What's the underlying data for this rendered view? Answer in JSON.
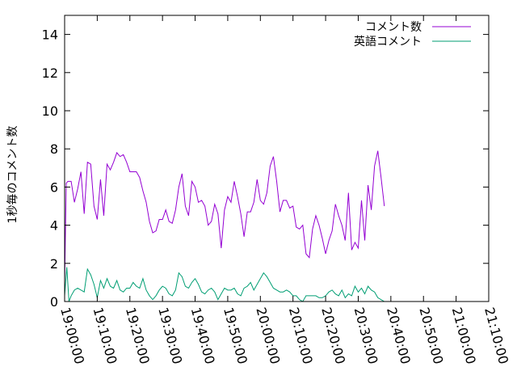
{
  "chart_data": {
    "type": "line",
    "title": "",
    "xlabel": "",
    "ylabel": "1秒毎のコメント数",
    "x_range": [
      "19:00:00",
      "21:10:00"
    ],
    "x_ticks": [
      "19:00:00",
      "19:10:00",
      "19:20:00",
      "19:30:00",
      "19:40:00",
      "19:50:00",
      "20:00:00",
      "20:10:00",
      "20:20:00",
      "20:30:00",
      "20:40:00",
      "20:50:00",
      "21:00:00",
      "21:10:00"
    ],
    "ylim": [
      0,
      15
    ],
    "y_ticks": [
      "0",
      "2",
      "4",
      "6",
      "8",
      "10",
      "12",
      "14"
    ],
    "grid": false,
    "legend_position": "top-right",
    "series": [
      {
        "name": "コメント数",
        "color": "#9400d3",
        "points": [
          [
            "19:00:00",
            1.0
          ],
          [
            "19:00:30",
            6.2
          ],
          [
            "19:01:00",
            6.3
          ],
          [
            "19:02:00",
            6.3
          ],
          [
            "19:03:00",
            5.2
          ],
          [
            "19:04:00",
            5.9
          ],
          [
            "19:05:00",
            6.8
          ],
          [
            "19:06:00",
            4.6
          ],
          [
            "19:07:00",
            7.3
          ],
          [
            "19:08:00",
            7.2
          ],
          [
            "19:09:00",
            5.0
          ],
          [
            "19:10:00",
            4.3
          ],
          [
            "19:11:00",
            6.4
          ],
          [
            "19:12:00",
            4.5
          ],
          [
            "19:13:00",
            7.2
          ],
          [
            "19:14:00",
            6.9
          ],
          [
            "19:15:00",
            7.3
          ],
          [
            "19:16:00",
            7.8
          ],
          [
            "19:17:00",
            7.6
          ],
          [
            "19:18:00",
            7.7
          ],
          [
            "19:19:00",
            7.3
          ],
          [
            "19:20:00",
            6.8
          ],
          [
            "19:21:00",
            6.8
          ],
          [
            "19:22:00",
            6.8
          ],
          [
            "19:23:00",
            6.5
          ],
          [
            "19:24:00",
            5.8
          ],
          [
            "19:25:00",
            5.2
          ],
          [
            "19:26:00",
            4.2
          ],
          [
            "19:27:00",
            3.6
          ],
          [
            "19:28:00",
            3.7
          ],
          [
            "19:29:00",
            4.3
          ],
          [
            "19:30:00",
            4.3
          ],
          [
            "19:31:00",
            4.8
          ],
          [
            "19:32:00",
            4.2
          ],
          [
            "19:33:00",
            4.1
          ],
          [
            "19:34:00",
            4.8
          ],
          [
            "19:35:00",
            6.0
          ],
          [
            "19:36:00",
            6.7
          ],
          [
            "19:37:00",
            5.0
          ],
          [
            "19:38:00",
            4.5
          ],
          [
            "19:39:00",
            6.3
          ],
          [
            "19:40:00",
            6.0
          ],
          [
            "19:41:00",
            5.2
          ],
          [
            "19:42:00",
            5.3
          ],
          [
            "19:43:00",
            5.0
          ],
          [
            "19:44:00",
            4.0
          ],
          [
            "19:45:00",
            4.2
          ],
          [
            "19:46:00",
            5.1
          ],
          [
            "19:47:00",
            4.6
          ],
          [
            "19:48:00",
            2.8
          ],
          [
            "19:49:00",
            4.8
          ],
          [
            "19:50:00",
            5.5
          ],
          [
            "19:51:00",
            5.2
          ],
          [
            "19:52:00",
            6.3
          ],
          [
            "19:53:00",
            5.5
          ],
          [
            "19:54:00",
            4.6
          ],
          [
            "19:55:00",
            3.4
          ],
          [
            "19:56:00",
            4.7
          ],
          [
            "19:57:00",
            4.7
          ],
          [
            "19:58:00",
            5.2
          ],
          [
            "19:59:00",
            6.4
          ],
          [
            "20:00:00",
            5.3
          ],
          [
            "20:01:00",
            5.1
          ],
          [
            "20:02:00",
            5.7
          ],
          [
            "20:03:00",
            7.1
          ],
          [
            "20:04:00",
            7.6
          ],
          [
            "20:05:00",
            6.3
          ],
          [
            "20:06:00",
            4.7
          ],
          [
            "20:07:00",
            5.3
          ],
          [
            "20:08:00",
            5.3
          ],
          [
            "20:09:00",
            4.9
          ],
          [
            "20:10:00",
            5.0
          ],
          [
            "20:11:00",
            3.9
          ],
          [
            "20:12:00",
            3.8
          ],
          [
            "20:13:00",
            4.0
          ],
          [
            "20:14:00",
            2.5
          ],
          [
            "20:15:00",
            2.3
          ],
          [
            "20:16:00",
            3.8
          ],
          [
            "20:17:00",
            4.5
          ],
          [
            "20:18:00",
            4.0
          ],
          [
            "20:19:00",
            3.3
          ],
          [
            "20:20:00",
            2.5
          ],
          [
            "20:21:00",
            3.2
          ],
          [
            "20:22:00",
            3.7
          ],
          [
            "20:23:00",
            5.1
          ],
          [
            "20:24:00",
            4.5
          ],
          [
            "20:25:00",
            4.0
          ],
          [
            "20:26:00",
            3.2
          ],
          [
            "20:27:00",
            5.7
          ],
          [
            "20:28:00",
            2.7
          ],
          [
            "20:29:00",
            3.1
          ],
          [
            "20:30:00",
            2.8
          ],
          [
            "20:31:00",
            5.3
          ],
          [
            "20:32:00",
            3.2
          ],
          [
            "20:33:00",
            6.1
          ],
          [
            "20:34:00",
            4.8
          ],
          [
            "20:35:00",
            7.1
          ],
          [
            "20:36:00",
            7.9
          ],
          [
            "20:37:00",
            6.5
          ],
          [
            "20:38:00",
            5.0
          ]
        ]
      },
      {
        "name": "英語コメント",
        "color": "#009e73",
        "points": [
          [
            "19:00:00",
            0.3
          ],
          [
            "19:00:40",
            1.8
          ],
          [
            "19:01:20",
            0.0
          ],
          [
            "19:02:00",
            0.3
          ],
          [
            "19:03:00",
            0.6
          ],
          [
            "19:04:00",
            0.7
          ],
          [
            "19:05:00",
            0.6
          ],
          [
            "19:06:00",
            0.5
          ],
          [
            "19:07:00",
            1.7
          ],
          [
            "19:08:00",
            1.4
          ],
          [
            "19:09:00",
            0.9
          ],
          [
            "19:10:00",
            0.2
          ],
          [
            "19:11:00",
            1.1
          ],
          [
            "19:12:00",
            0.7
          ],
          [
            "19:13:00",
            1.2
          ],
          [
            "19:14:00",
            0.8
          ],
          [
            "19:15:00",
            0.7
          ],
          [
            "19:16:00",
            1.1
          ],
          [
            "19:17:00",
            0.6
          ],
          [
            "19:18:00",
            0.5
          ],
          [
            "19:19:00",
            0.7
          ],
          [
            "19:20:00",
            0.7
          ],
          [
            "19:21:00",
            1.0
          ],
          [
            "19:22:00",
            0.8
          ],
          [
            "19:23:00",
            0.7
          ],
          [
            "19:24:00",
            1.2
          ],
          [
            "19:25:00",
            0.6
          ],
          [
            "19:26:00",
            0.3
          ],
          [
            "19:27:00",
            0.1
          ],
          [
            "19:28:00",
            0.3
          ],
          [
            "19:29:00",
            0.6
          ],
          [
            "19:30:00",
            0.8
          ],
          [
            "19:31:00",
            0.7
          ],
          [
            "19:32:00",
            0.4
          ],
          [
            "19:33:00",
            0.3
          ],
          [
            "19:34:00",
            0.6
          ],
          [
            "19:35:00",
            1.5
          ],
          [
            "19:36:00",
            1.3
          ],
          [
            "19:37:00",
            0.8
          ],
          [
            "19:38:00",
            0.7
          ],
          [
            "19:39:00",
            1.0
          ],
          [
            "19:40:00",
            1.2
          ],
          [
            "19:41:00",
            0.9
          ],
          [
            "19:42:00",
            0.5
          ],
          [
            "19:43:00",
            0.4
          ],
          [
            "19:44:00",
            0.6
          ],
          [
            "19:45:00",
            0.7
          ],
          [
            "19:46:00",
            0.5
          ],
          [
            "19:47:00",
            0.1
          ],
          [
            "19:48:00",
            0.4
          ],
          [
            "19:49:00",
            0.7
          ],
          [
            "19:50:00",
            0.6
          ],
          [
            "19:51:00",
            0.6
          ],
          [
            "19:52:00",
            0.7
          ],
          [
            "19:53:00",
            0.4
          ],
          [
            "19:54:00",
            0.3
          ],
          [
            "19:55:00",
            0.7
          ],
          [
            "19:56:00",
            0.8
          ],
          [
            "19:57:00",
            1.0
          ],
          [
            "19:58:00",
            0.6
          ],
          [
            "19:59:00",
            0.9
          ],
          [
            "20:00:00",
            1.2
          ],
          [
            "20:01:00",
            1.5
          ],
          [
            "20:02:00",
            1.3
          ],
          [
            "20:03:00",
            1.0
          ],
          [
            "20:04:00",
            0.7
          ],
          [
            "20:05:00",
            0.6
          ],
          [
            "20:06:00",
            0.5
          ],
          [
            "20:07:00",
            0.5
          ],
          [
            "20:08:00",
            0.6
          ],
          [
            "20:09:00",
            0.5
          ],
          [
            "20:10:00",
            0.3
          ],
          [
            "20:11:00",
            0.3
          ],
          [
            "20:12:00",
            0.1
          ],
          [
            "20:13:00",
            0.0
          ],
          [
            "20:14:00",
            0.3
          ],
          [
            "20:15:00",
            0.3
          ],
          [
            "20:16:00",
            0.3
          ],
          [
            "20:17:00",
            0.3
          ],
          [
            "20:18:00",
            0.2
          ],
          [
            "20:19:00",
            0.2
          ],
          [
            "20:20:00",
            0.3
          ],
          [
            "20:21:00",
            0.5
          ],
          [
            "20:22:00",
            0.6
          ],
          [
            "20:23:00",
            0.4
          ],
          [
            "20:24:00",
            0.3
          ],
          [
            "20:25:00",
            0.6
          ],
          [
            "20:26:00",
            0.2
          ],
          [
            "20:27:00",
            0.4
          ],
          [
            "20:28:00",
            0.3
          ],
          [
            "20:29:00",
            0.8
          ],
          [
            "20:30:00",
            0.5
          ],
          [
            "20:31:00",
            0.7
          ],
          [
            "20:32:00",
            0.4
          ],
          [
            "20:33:00",
            0.8
          ],
          [
            "20:34:00",
            0.6
          ],
          [
            "20:35:00",
            0.5
          ],
          [
            "20:36:00",
            0.2
          ],
          [
            "20:37:00",
            0.1
          ],
          [
            "20:38:00",
            0.0
          ]
        ]
      }
    ]
  }
}
